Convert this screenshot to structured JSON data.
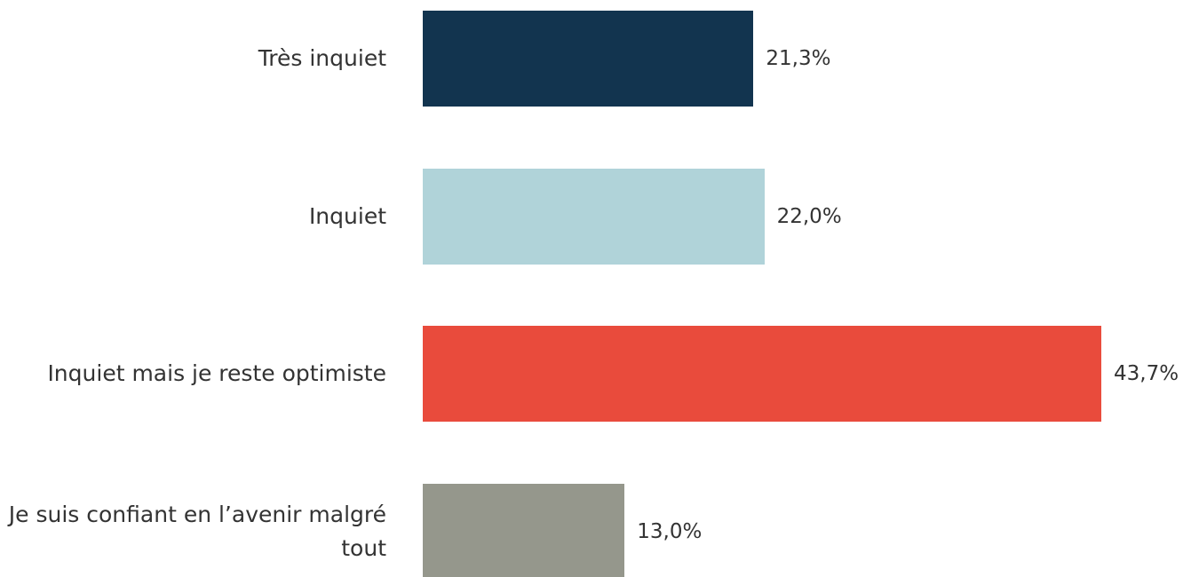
{
  "chart_data": {
    "type": "hbar",
    "categories": [
      "Très inquiet",
      "Inquiet",
      "Inquiet mais je reste optimiste",
      "Je suis confiant en l’avenir malgré tout"
    ],
    "values": [
      21.3,
      22.0,
      43.7,
      13.0
    ],
    "value_labels": [
      "21,3%",
      "22,0%",
      "43,7%",
      "13,0%"
    ],
    "colors": [
      "#12344f",
      "#b0d3d9",
      "#e94b3c",
      "#95978c"
    ]
  }
}
